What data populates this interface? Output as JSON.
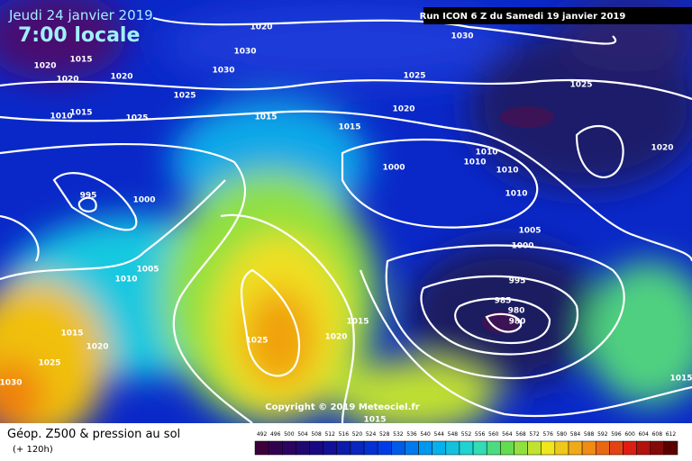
{
  "header": {
    "date": "Jeudi 24 janvier 2019",
    "time": "7:00 locale",
    "run": "Run ICON 6 Z du Samedi 19 janvier 2019"
  },
  "copyright": "Copyright © 2019 Meteociel.fr",
  "footer": {
    "title": "Géop. Z500 & pression au sol",
    "lead": "(+ 120h)"
  },
  "isobar_labels": [
    "1020",
    "1030",
    "1020",
    "1015",
    "1020",
    "1020",
    "1030",
    "1030",
    "1025",
    "1025",
    "1025",
    "1015",
    "1010",
    "1015",
    "1020",
    "1015",
    "1025",
    "1020",
    "1010",
    "1010",
    "1010",
    "1010",
    "1000",
    "995",
    "1000",
    "1005",
    "1000",
    "1005",
    "1010",
    "995",
    "985",
    "980",
    "980",
    "1015",
    "1020",
    "1025",
    "1015",
    "1020",
    "1025",
    "1030",
    "1015",
    "1015"
  ],
  "colorbar_labels": [
    "492",
    "496",
    "500",
    "504",
    "508",
    "512",
    "516",
    "520",
    "524",
    "528",
    "532",
    "536",
    "540",
    "544",
    "548",
    "552",
    "556",
    "560",
    "564",
    "568",
    "572",
    "576",
    "580",
    "584",
    "588",
    "592",
    "596",
    "600",
    "604",
    "608",
    "612"
  ]
}
